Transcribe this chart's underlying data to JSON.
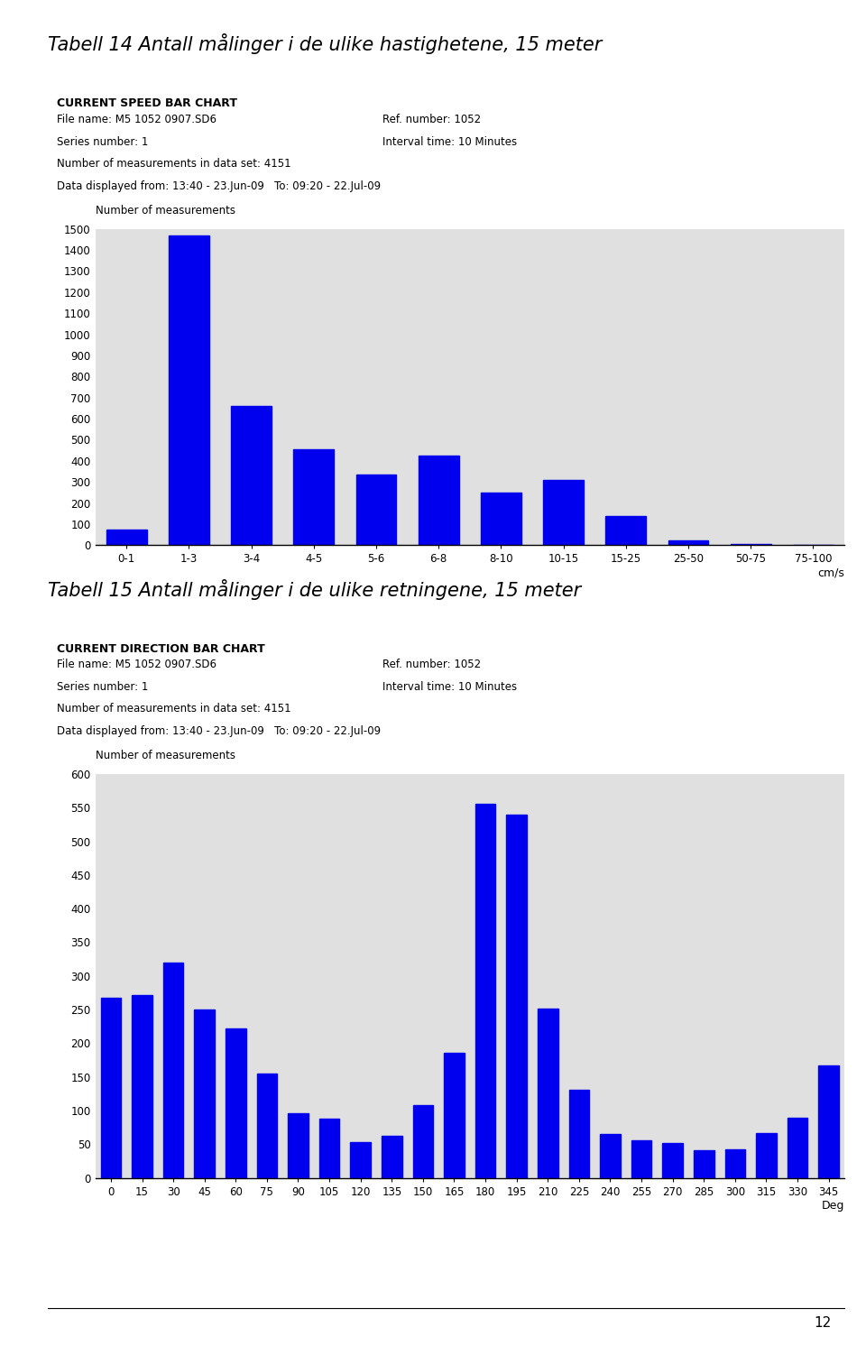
{
  "title1": "Tabell 14 Antall målinger i de ulike hastighetene, 15 meter",
  "title2": "Tabell 15 Antall målinger i de ulike retningene, 15 meter",
  "chart1": {
    "header_bold": "CURRENT SPEED BAR CHART",
    "info_lines": [
      [
        "File name: M5 1052 0907.SD6",
        "Ref. number: 1052"
      ],
      [
        "Series number: 1",
        "Interval time: 10 Minutes"
      ],
      [
        "Number of measurements in data set: 4151",
        ""
      ],
      [
        "Data displayed from: 13:40 - 23.Jun-09   To: 09:20 - 22.Jul-09",
        ""
      ]
    ],
    "categories": [
      "0-1",
      "1-3",
      "3-4",
      "4-5",
      "5-6",
      "6-8",
      "8-10",
      "10-15",
      "15-25",
      "25-50",
      "50-75",
      "75-100"
    ],
    "values": [
      75,
      1470,
      660,
      455,
      335,
      425,
      248,
      308,
      140,
      22,
      5,
      2
    ],
    "ylabel": "Number of measurements",
    "xlabel": "cm/s",
    "ylim": [
      0,
      1500
    ],
    "yticks": [
      0,
      100,
      200,
      300,
      400,
      500,
      600,
      700,
      800,
      900,
      1000,
      1100,
      1200,
      1300,
      1400,
      1500
    ],
    "bar_color": "#0000ee"
  },
  "chart2": {
    "header_bold": "CURRENT DIRECTION BAR CHART",
    "info_lines": [
      [
        "File name: M5 1052 0907.SD6",
        "Ref. number: 1052"
      ],
      [
        "Series number: 1",
        "Interval time: 10 Minutes"
      ],
      [
        "Number of measurements in data set: 4151",
        ""
      ],
      [
        "Data displayed from: 13:40 - 23.Jun-09   To: 09:20 - 22.Jul-09",
        ""
      ]
    ],
    "categories": [
      "0",
      "15",
      "30",
      "45",
      "60",
      "75",
      "90",
      "105",
      "120",
      "135",
      "150",
      "165",
      "180",
      "195",
      "210",
      "225",
      "240",
      "255",
      "270",
      "285",
      "300",
      "315",
      "330",
      "345"
    ],
    "values": [
      268,
      272,
      320,
      250,
      222,
      155,
      96,
      88,
      53,
      63,
      108,
      185,
      555,
      540,
      252,
      131,
      65,
      55,
      51,
      41,
      42,
      66,
      89,
      167
    ],
    "ylabel": "Number of measurements",
    "xlabel": "Deg",
    "ylim": [
      0,
      600
    ],
    "yticks": [
      0,
      50,
      100,
      150,
      200,
      250,
      300,
      350,
      400,
      450,
      500,
      550,
      600
    ],
    "bar_color": "#0000ee"
  },
  "chart_bg": "#e0e0e0",
  "info_bg": "#e8e8e8",
  "page_number": "12"
}
